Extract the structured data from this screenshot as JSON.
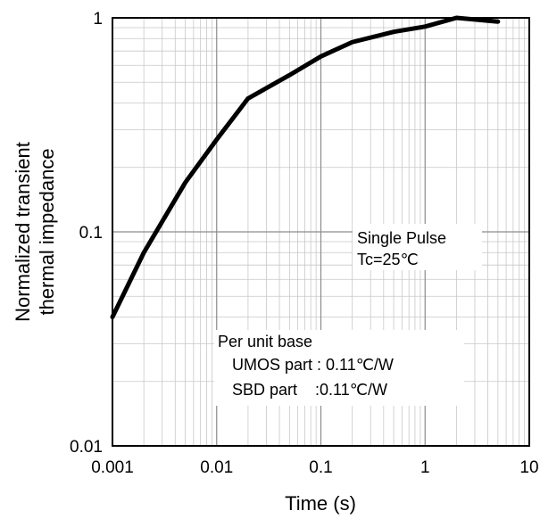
{
  "chart_data": {
    "type": "line",
    "title": "",
    "xlabel": "Time (s)",
    "ylabel": [
      "Normalized transient",
      "thermal impedance"
    ],
    "xscale": "log",
    "yscale": "log",
    "xlim": [
      0.001,
      10
    ],
    "ylim": [
      0.01,
      1
    ],
    "grid": true,
    "x_ticks": [
      "0.001",
      "0.01",
      "0.1",
      "1",
      "10"
    ],
    "y_ticks": [
      "0.01",
      "0.1",
      "1"
    ],
    "series": [
      {
        "x": [
          0.001,
          0.002,
          0.005,
          0.01,
          0.02,
          0.05,
          0.1,
          0.2,
          0.5,
          1,
          2,
          5
        ],
        "y": [
          0.04,
          0.08,
          0.17,
          0.27,
          0.42,
          0.54,
          0.66,
          0.77,
          0.86,
          0.91,
          1.0,
          0.96
        ],
        "color": "#000000"
      }
    ],
    "annotations": {
      "pulse": [
        "Single Pulse",
        "Tc=25℃"
      ],
      "base_title": "Per unit base",
      "base_lines": [
        "UMOS part : 0.11℃/W",
        "SBD part    :0.11℃/W"
      ]
    }
  }
}
